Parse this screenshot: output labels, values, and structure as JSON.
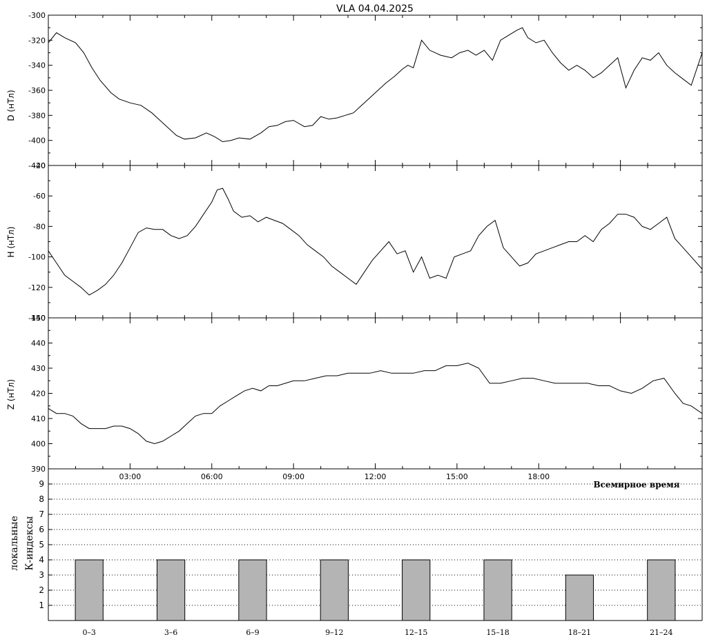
{
  "title": "VLA   04.04.2025",
  "time_axis_label": "Всемирное время",
  "chart_data": [
    {
      "type": "line",
      "panel": "D",
      "ylabel": "D (нТл)",
      "ylim": [
        -420,
        -300
      ],
      "yticks": [
        -420,
        -400,
        -380,
        -360,
        -340,
        -320,
        -300
      ],
      "x_unit": "hours UT",
      "xlim": [
        0,
        24
      ],
      "series": [
        {
          "x": [
            0,
            0.3,
            0.6,
            1.0,
            1.3,
            1.6,
            1.9,
            2.3,
            2.6,
            3.0,
            3.4,
            3.8,
            4.1,
            4.4,
            4.7,
            5.0,
            5.4,
            5.8,
            6.1,
            6.4,
            6.7,
            7.0,
            7.4,
            7.8,
            8.1,
            8.4,
            8.7,
            9.0,
            9.4,
            9.7,
            10.0,
            10.3,
            10.6,
            10.9,
            11.2,
            11.5,
            11.8,
            12.1,
            12.4,
            12.7,
            13.0,
            13.2,
            13.4,
            13.7,
            14.0,
            14.4,
            14.8,
            15.1,
            15.4,
            15.7,
            16.0,
            16.3,
            16.6,
            16.9,
            17.2,
            17.4,
            17.6,
            17.9,
            18.2,
            18.5,
            18.8,
            19.1,
            19.4,
            19.7,
            20.0,
            20.3,
            20.6,
            20.9,
            21.2,
            21.5,
            21.8,
            22.1,
            22.4,
            22.7,
            23.0,
            23.3,
            23.6,
            24.0
          ],
          "values": [
            -322,
            -314,
            -318,
            -322,
            -330,
            -342,
            -352,
            -362,
            -367,
            -370,
            -372,
            -378,
            -384,
            -390,
            -396,
            -399,
            -398,
            -394,
            -397,
            -401,
            -400,
            -398,
            -399,
            -394,
            -389,
            -388,
            -385,
            -384,
            -389,
            -388,
            -381,
            -383,
            -382,
            -380,
            -378,
            -372,
            -366,
            -360,
            -354,
            -349,
            -343,
            -340,
            -342,
            -320,
            -328,
            -332,
            -334,
            -330,
            -328,
            -332,
            -328,
            -336,
            -320,
            -316,
            -312,
            -310,
            -318,
            -322,
            -320,
            -330,
            -338,
            -344,
            -340,
            -344,
            -350,
            -346,
            -340,
            -334,
            -358,
            -344,
            -334,
            -336,
            -330,
            -340,
            -346,
            -351,
            -356,
            -330
          ]
        }
      ]
    },
    {
      "type": "line",
      "panel": "H",
      "ylabel": "H (нТл)",
      "ylim": [
        -140,
        -40
      ],
      "yticks": [
        -140,
        -120,
        -100,
        -80,
        -60,
        -40
      ],
      "x_unit": "hours UT",
      "xlim": [
        0,
        24
      ],
      "series": [
        {
          "x": [
            0,
            0.3,
            0.6,
            0.9,
            1.2,
            1.5,
            1.8,
            2.1,
            2.4,
            2.7,
            3.0,
            3.3,
            3.6,
            3.9,
            4.2,
            4.5,
            4.8,
            5.1,
            5.4,
            5.7,
            6.0,
            6.2,
            6.4,
            6.6,
            6.8,
            7.1,
            7.4,
            7.7,
            8.0,
            8.3,
            8.6,
            8.9,
            9.2,
            9.5,
            9.8,
            10.1,
            10.4,
            10.7,
            11.0,
            11.3,
            11.6,
            11.9,
            12.2,
            12.5,
            12.8,
            13.1,
            13.4,
            13.7,
            14.0,
            14.3,
            14.6,
            14.9,
            15.2,
            15.5,
            15.8,
            16.1,
            16.4,
            16.7,
            17.0,
            17.3,
            17.6,
            17.9,
            18.2,
            18.5,
            18.8,
            19.1,
            19.4,
            19.7,
            20.0,
            20.3,
            20.6,
            20.9,
            21.2,
            21.5,
            21.8,
            22.1,
            22.4,
            22.7,
            23.0,
            23.3,
            23.6,
            24.0
          ],
          "values": [
            -96,
            -104,
            -112,
            -116,
            -120,
            -125,
            -122,
            -118,
            -112,
            -104,
            -94,
            -84,
            -81,
            -82,
            -82,
            -86,
            -88,
            -86,
            -80,
            -72,
            -64,
            -56,
            -55,
            -62,
            -70,
            -74,
            -73,
            -77,
            -74,
            -76,
            -78,
            -82,
            -86,
            -92,
            -96,
            -100,
            -106,
            -110,
            -114,
            -118,
            -110,
            -102,
            -96,
            -90,
            -98,
            -96,
            -110,
            -100,
            -114,
            -112,
            -114,
            -100,
            -98,
            -96,
            -86,
            -80,
            -76,
            -94,
            -100,
            -106,
            -104,
            -98,
            -96,
            -94,
            -92,
            -90,
            -90,
            -86,
            -90,
            -82,
            -78,
            -72,
            -72,
            -74,
            -80,
            -82,
            -78,
            -74,
            -88,
            -94,
            -100,
            -108
          ]
        }
      ]
    },
    {
      "type": "line",
      "panel": "Z",
      "ylabel": "Z (нТл)",
      "ylim": [
        390,
        450
      ],
      "yticks": [
        390,
        400,
        410,
        420,
        430,
        440,
        450
      ],
      "x_unit": "hours UT",
      "xlim": [
        0,
        24
      ],
      "series": [
        {
          "x": [
            0,
            0.3,
            0.6,
            0.9,
            1.2,
            1.5,
            1.8,
            2.1,
            2.4,
            2.7,
            3.0,
            3.3,
            3.6,
            3.9,
            4.2,
            4.5,
            4.8,
            5.1,
            5.4,
            5.7,
            6.0,
            6.3,
            6.6,
            6.9,
            7.2,
            7.5,
            7.8,
            8.1,
            8.4,
            8.7,
            9.0,
            9.4,
            9.8,
            10.2,
            10.6,
            11.0,
            11.4,
            11.8,
            12.2,
            12.6,
            13.0,
            13.4,
            13.8,
            14.2,
            14.6,
            15.0,
            15.4,
            15.8,
            16.2,
            16.6,
            17.0,
            17.4,
            17.8,
            18.2,
            18.6,
            19.0,
            19.4,
            19.8,
            20.2,
            20.6,
            21.0,
            21.4,
            21.8,
            22.2,
            22.6,
            23.0,
            23.3,
            23.6,
            24.0
          ],
          "values": [
            414,
            412,
            412,
            411,
            408,
            406,
            406,
            406,
            407,
            407,
            406,
            404,
            401,
            400,
            401,
            403,
            405,
            408,
            411,
            412,
            412,
            415,
            417,
            419,
            421,
            422,
            421,
            423,
            423,
            424,
            425,
            425,
            426,
            427,
            427,
            428,
            428,
            428,
            429,
            428,
            428,
            428,
            429,
            429,
            431,
            431,
            432,
            430,
            424,
            424,
            425,
            426,
            426,
            425,
            424,
            424,
            424,
            424,
            423,
            423,
            421,
            420,
            422,
            425,
            426,
            420,
            416,
            415,
            412
          ]
        }
      ]
    },
    {
      "type": "bar",
      "panel": "K",
      "ylabel_line1": "локальные",
      "ylabel_line2": "К-индексы",
      "categories": [
        "0–3",
        "3–6",
        "6–9",
        "9–12",
        "12–15",
        "15–18",
        "18–21",
        "21–24"
      ],
      "values": [
        4,
        4,
        4,
        4,
        4,
        4,
        3,
        4
      ],
      "ylim": [
        0,
        10
      ],
      "yticks": [
        1,
        2,
        3,
        4,
        5,
        6,
        7,
        8,
        9
      ],
      "grid": "horizontal dotted",
      "bar_color": "#b4b4b4"
    }
  ],
  "time_ticks": [
    "03:00",
    "06:00",
    "09:00",
    "12:00",
    "15:00",
    "18:00"
  ]
}
